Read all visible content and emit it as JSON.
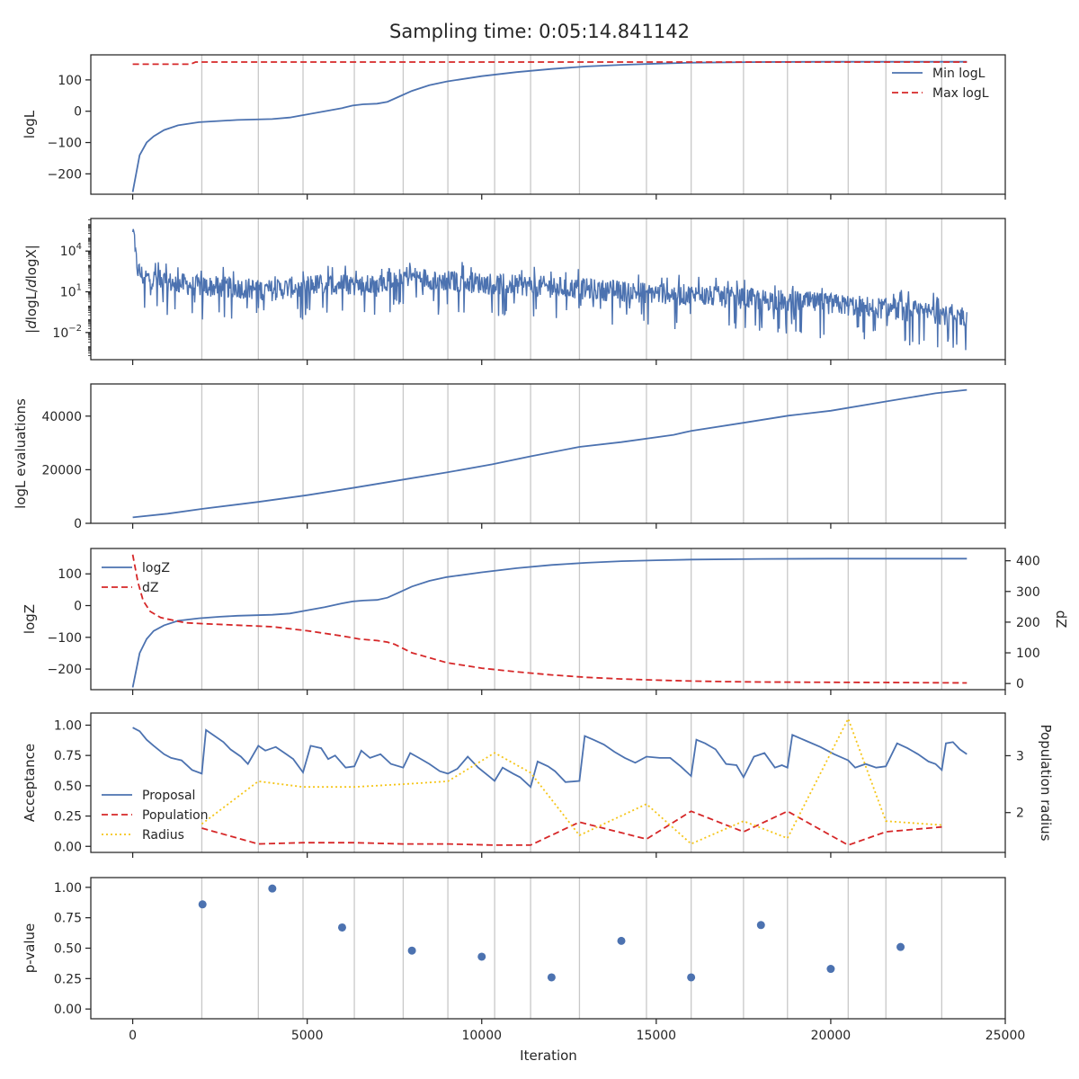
{
  "title": "Sampling time: 0:05:14.841142",
  "colors": {
    "blue": "#4c72b0",
    "red": "#d62728",
    "gold": "#f5c518",
    "grid": "#c8c8c8",
    "axis": "#262626"
  },
  "chart_data": {
    "type": "line",
    "shared_xaxis": {
      "label": "Iteration",
      "xlim": [
        -1200,
        25000
      ],
      "ticks": [
        0,
        5000,
        10000,
        15000,
        20000,
        25000
      ],
      "tick_labels": [
        "0",
        "5000",
        "10000",
        "15000",
        "20000",
        "25000"
      ]
    },
    "insertion_vlines": [
      1980,
      3600,
      4880,
      6350,
      7750,
      9030,
      10370,
      11400,
      12800,
      14720,
      16000,
      17500,
      18760,
      20500,
      21580,
      23180
    ],
    "panels": [
      {
        "id": "logl",
        "ylabel": "logL",
        "ylim": [
          -265,
          180
        ],
        "yticks": [
          100,
          0,
          -100,
          -200
        ],
        "ytick_labels": [
          "100",
          "0",
          "−100",
          "−200"
        ],
        "legend": {
          "position": "upper right",
          "entries": [
            "Min logL",
            "Max logL"
          ]
        },
        "series": [
          {
            "name": "Min logL",
            "style": "solid",
            "color": "blue",
            "x": [
              0,
              200,
              400,
              600,
              900,
              1300,
              1900,
              2500,
              3000,
              4000,
              4500,
              5000,
              5500,
              6000,
              6300,
              6600,
              7000,
              7300,
              7600,
              8000,
              8500,
              9000,
              10000,
              11000,
              12000,
              13000,
              14000,
              15000,
              16000,
              18000,
              20000,
              22000,
              23900
            ],
            "y": [
              -258,
              -140,
              -100,
              -80,
              -60,
              -45,
              -35,
              -31,
              -28,
              -25,
              -20,
              -10,
              0,
              10,
              18,
              22,
              24,
              30,
              45,
              65,
              83,
              95,
              112,
              125,
              135,
              143,
              148,
              152,
              155,
              157,
              158,
              158,
              158
            ]
          },
          {
            "name": "Max logL",
            "style": "dashed",
            "color": "red",
            "x": [
              0,
              1650,
              1800,
              23900
            ],
            "y": [
              150,
              150,
              157,
              157
            ]
          }
        ]
      },
      {
        "id": "dlogl",
        "ylabel": "|dlogL/dlogX|",
        "yscale": "log",
        "ylim_exp": [
          -4.0,
          6.4
        ],
        "yticks": [
          4,
          1,
          -2
        ],
        "ytick_labels": [
          {
            "base": "10",
            "exp": "4"
          },
          {
            "base": "10",
            "exp": "1"
          },
          {
            "base": "10",
            "exp": "−2"
          }
        ],
        "series": [
          {
            "name": "",
            "style": "noisy",
            "color": "blue",
            "center_exp": {
              "x": [
                0,
                150,
                300,
                1000,
                2000,
                3000,
                4000,
                5000,
                6000,
                7000,
                7400,
                7700,
                9000,
                11000,
                13000,
                15000,
                17000,
                19000,
                21000,
                23900
              ],
              "y": [
                4.8,
                2.6,
                2.1,
                1.7,
                1.4,
                1.3,
                1.1,
                1.5,
                1.6,
                1.4,
                2.0,
                2.2,
                1.8,
                1.5,
                1.2,
                0.9,
                0.6,
                0.3,
                -0.1,
                -0.8
              ]
            },
            "spike_exp": 5.8
          }
        ]
      },
      {
        "id": "evals",
        "ylabel": "logL evaluations",
        "ylim": [
          0,
          52000
        ],
        "yticks": [
          0,
          20000,
          40000
        ],
        "ytick_labels": [
          "0",
          "20000",
          "40000"
        ],
        "series": [
          {
            "name": "",
            "style": "solid",
            "color": "blue",
            "x": [
              0,
              1000,
              2000,
              3600,
              5000,
              6300,
              7700,
              9000,
              10300,
              11400,
              12800,
              14000,
              15500,
              16000,
              17500,
              18800,
              20000,
              21600,
              23000,
              23900
            ],
            "y": [
              2200,
              3600,
              5400,
              8000,
              10500,
              13200,
              16200,
              19000,
              22000,
              25000,
              28500,
              30300,
              33000,
              34500,
              37500,
              40200,
              42000,
              45500,
              48500,
              49800
            ]
          }
        ]
      },
      {
        "id": "logz",
        "ylabel": "logZ",
        "ylim": [
          -265,
          180
        ],
        "yticks": [
          100,
          0,
          -100,
          -200
        ],
        "ytick_labels": [
          "100",
          "0",
          "−100",
          "−200"
        ],
        "y2label": "dZ",
        "y2lim": [
          -20,
          440
        ],
        "y2ticks": [
          0,
          100,
          200,
          300,
          400
        ],
        "y2tick_labels": [
          "0",
          "100",
          "200",
          "300",
          "400"
        ],
        "legend": {
          "position": "upper left",
          "entries": [
            "logZ",
            "dZ"
          ]
        },
        "series": [
          {
            "name": "logZ",
            "style": "solid",
            "color": "blue",
            "axis": "left",
            "x": [
              0,
              200,
              400,
              600,
              900,
              1300,
              1900,
              2500,
              3000,
              4000,
              4500,
              5000,
              5500,
              6000,
              6300,
              6600,
              7000,
              7300,
              7600,
              8000,
              8500,
              9000,
              10000,
              11000,
              12000,
              13000,
              14000,
              15000,
              16000,
              18000,
              20000,
              22000,
              23900
            ],
            "y": [
              -258,
              -150,
              -105,
              -80,
              -62,
              -48,
              -40,
              -35,
              -32,
              -29,
              -25,
              -15,
              -5,
              7,
              13,
              16,
              18,
              25,
              40,
              60,
              78,
              90,
              105,
              118,
              128,
              135,
              140,
              143,
              145,
              147,
              148,
              148,
              148
            ]
          },
          {
            "name": "dZ",
            "style": "dashed",
            "color": "red",
            "axis": "right",
            "x": [
              0,
              150,
              300,
              500,
              800,
              1200,
              1500,
              2000,
              3000,
              4000,
              5000,
              6000,
              6500,
              7000,
              7300,
              7500,
              8000,
              9000,
              10000,
              11000,
              12000,
              13000,
              14000,
              15000,
              16000,
              17000,
              18000,
              20000,
              22000,
              23900
            ],
            "y": [
              420,
              330,
              270,
              235,
              215,
              205,
              198,
              195,
              190,
              185,
              172,
              155,
              145,
              140,
              135,
              128,
              100,
              68,
              50,
              38,
              28,
              20,
              15,
              11,
              8,
              6,
              5,
              4,
              3,
              2
            ]
          }
        ]
      },
      {
        "id": "acceptance",
        "ylabel": "Acceptance",
        "ylim": [
          -0.05,
          1.1
        ],
        "yticks": [
          1.0,
          0.75,
          0.5,
          0.25,
          0.0
        ],
        "ytick_labels": [
          "1.00",
          "0.75",
          "0.50",
          "0.25",
          "0.00"
        ],
        "y2label": "Population radius",
        "y2lim": [
          1.3,
          3.75
        ],
        "y2ticks": [
          2,
          3
        ],
        "y2tick_labels": [
          "2",
          "3"
        ],
        "legend": {
          "position": "lower left",
          "entries": [
            "Proposal",
            "Population",
            "Radius"
          ]
        },
        "series": [
          {
            "name": "Proposal",
            "style": "solid",
            "color": "blue",
            "axis": "left",
            "x": [
              0,
              200,
              400,
              600,
              900,
              1100,
              1400,
              1700,
              1980,
              2100,
              2300,
              2600,
              2800,
              3100,
              3300,
              3600,
              3800,
              4100,
              4400,
              4600,
              4880,
              5100,
              5400,
              5600,
              5800,
              6100,
              6350,
              6550,
              6800,
              7100,
              7400,
              7750,
              7950,
              8200,
              8500,
              8800,
              9030,
              9300,
              9600,
              9900,
              10200,
              10370,
              10600,
              10900,
              11100,
              11400,
              11600,
              11900,
              12100,
              12400,
              12800,
              12950,
              13200,
              13500,
              13800,
              14100,
              14400,
              14720,
              15100,
              15400,
              15700,
              16000,
              16150,
              16400,
              16700,
              17000,
              17300,
              17500,
              17800,
              18100,
              18400,
              18600,
              18760,
              18900,
              19300,
              19700,
              20100,
              20500,
              20700,
              21000,
              21300,
              21580,
              21900,
              22200,
              22500,
              22800,
              23000,
              23180,
              23300,
              23500,
              23700,
              23900
            ],
            "y": [
              0.98,
              0.95,
              0.88,
              0.83,
              0.76,
              0.73,
              0.71,
              0.63,
              0.6,
              0.96,
              0.92,
              0.86,
              0.8,
              0.74,
              0.68,
              0.83,
              0.79,
              0.82,
              0.76,
              0.72,
              0.61,
              0.83,
              0.81,
              0.72,
              0.75,
              0.65,
              0.66,
              0.79,
              0.73,
              0.76,
              0.68,
              0.65,
              0.77,
              0.73,
              0.68,
              0.62,
              0.6,
              0.64,
              0.74,
              0.65,
              0.58,
              0.54,
              0.65,
              0.6,
              0.57,
              0.49,
              0.7,
              0.66,
              0.62,
              0.53,
              0.54,
              0.91,
              0.88,
              0.84,
              0.78,
              0.73,
              0.69,
              0.74,
              0.73,
              0.73,
              0.66,
              0.58,
              0.88,
              0.85,
              0.8,
              0.68,
              0.67,
              0.57,
              0.74,
              0.77,
              0.65,
              0.67,
              0.65,
              0.92,
              0.87,
              0.82,
              0.76,
              0.71,
              0.65,
              0.68,
              0.65,
              0.66,
              0.85,
              0.81,
              0.76,
              0.7,
              0.68,
              0.63,
              0.85,
              0.86,
              0.8,
              0.76
            ]
          },
          {
            "name": "Population",
            "style": "dashed",
            "color": "red",
            "axis": "left",
            "x": [
              1980,
              3600,
              4880,
              6350,
              7750,
              9030,
              10370,
              11400,
              12800,
              14720,
              16000,
              17500,
              18760,
              20500,
              21580,
              23180
            ],
            "y": [
              0.15,
              0.02,
              0.03,
              0.03,
              0.02,
              0.02,
              0.01,
              0.01,
              0.2,
              0.06,
              0.29,
              0.12,
              0.29,
              0.01,
              0.12,
              0.16
            ]
          },
          {
            "name": "Radius",
            "style": "dotted",
            "color": "gold",
            "axis": "right",
            "x": [
              1980,
              3600,
              4880,
              6350,
              7750,
              9030,
              10370,
              11400,
              12800,
              14720,
              16000,
              17500,
              18760,
              20500,
              21580,
              23180
            ],
            "y": [
              1.8,
              2.55,
              2.45,
              2.45,
              2.5,
              2.55,
              3.05,
              2.7,
              1.6,
              2.15,
              1.45,
              1.85,
              1.55,
              3.65,
              1.85,
              1.78
            ]
          }
        ]
      },
      {
        "id": "pvalue",
        "ylabel": "p-value",
        "ylim": [
          -0.08,
          1.08
        ],
        "yticks": [
          1.0,
          0.75,
          0.5,
          0.25,
          0.0
        ],
        "ytick_labels": [
          "1.00",
          "0.75",
          "0.50",
          "0.25",
          "0.00"
        ],
        "series": [
          {
            "name": "",
            "style": "scatter",
            "color": "blue",
            "x": [
              2000,
              4000,
              6000,
              8000,
              10000,
              12000,
              14000,
              16000,
              18000,
              20000,
              22000
            ],
            "y": [
              0.86,
              0.99,
              0.67,
              0.48,
              0.43,
              0.26,
              0.56,
              0.26,
              0.69,
              0.33,
              0.51
            ]
          }
        ]
      }
    ]
  }
}
